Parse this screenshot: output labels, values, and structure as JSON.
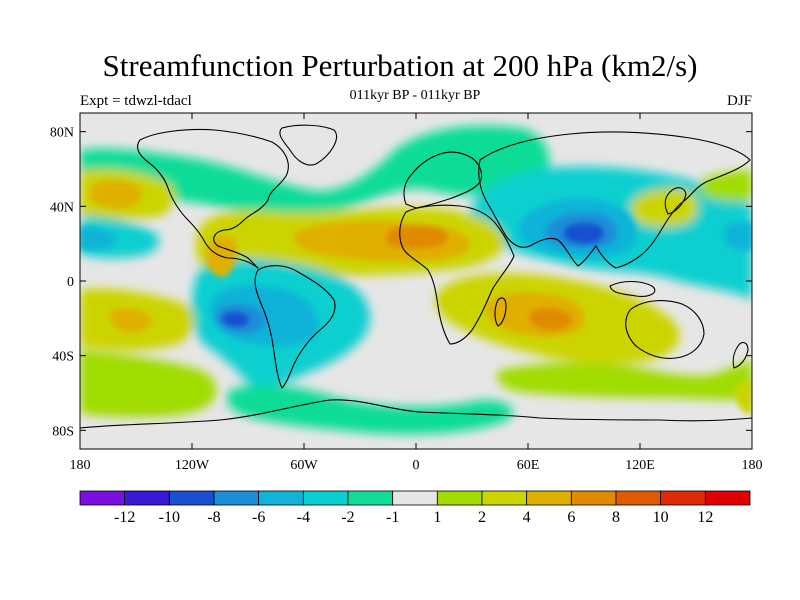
{
  "title": "Streamfunction Perturbation at 200 hPa (km2/s)",
  "subtitle": "011kyr BP - 011kyr BP",
  "left_string": "Expt = tdwzl-tdacl",
  "right_string": "DJF",
  "x_ticks": [
    "180",
    "120W",
    "60W",
    "0",
    "60E",
    "120E",
    "180"
  ],
  "y_ticks": [
    "80N",
    "40N",
    "0",
    "40S",
    "80S"
  ],
  "colorbar": {
    "labels": [
      "-12",
      "-10",
      "-8",
      "-6",
      "-4",
      "-2",
      "-1",
      "1",
      "2",
      "4",
      "6",
      "8",
      "10",
      "12"
    ],
    "colors": [
      "#7a10e0",
      "#3a18d8",
      "#1850d0",
      "#1a8ed8",
      "#10b4d8",
      "#08cfd0",
      "#10dc98",
      "#e6e6e6",
      "#a0dc00",
      "#ccd400",
      "#e0b000",
      "#e08a00",
      "#e05a00",
      "#e02a08",
      "#e00000"
    ]
  },
  "map_data": {
    "region": "global",
    "lon_range": [
      -180,
      180
    ],
    "lat_range": [
      -90,
      90
    ],
    "variable": "streamfunction perturbation",
    "level": "200 hPa",
    "units": "km2/s",
    "features": [
      {
        "name": "negative center over South Asia",
        "lon": 90,
        "lat": 25,
        "value": -8
      },
      {
        "name": "negative center over South Pacific",
        "lon": -97,
        "lat": -22,
        "value": -8
      },
      {
        "name": "positive center over North Africa / Atlantic",
        "lon": 5,
        "lat": 24,
        "value": 6
      },
      {
        "name": "positive center over Caribbean",
        "lon": -70,
        "lat": 20,
        "value": 6
      },
      {
        "name": "positive center over Southern Africa / Indian Ocean",
        "lon": 57,
        "lat": -22,
        "value": 6
      },
      {
        "name": "positive center over North Pacific",
        "lon": -163,
        "lat": 45,
        "value": 6
      },
      {
        "name": "positive center over South Pacific",
        "lon": -160,
        "lat": -23,
        "value": 4
      },
      {
        "name": "negative center over Central Pacific",
        "lon": -180,
        "lat": 22,
        "value": -4
      }
    ]
  }
}
